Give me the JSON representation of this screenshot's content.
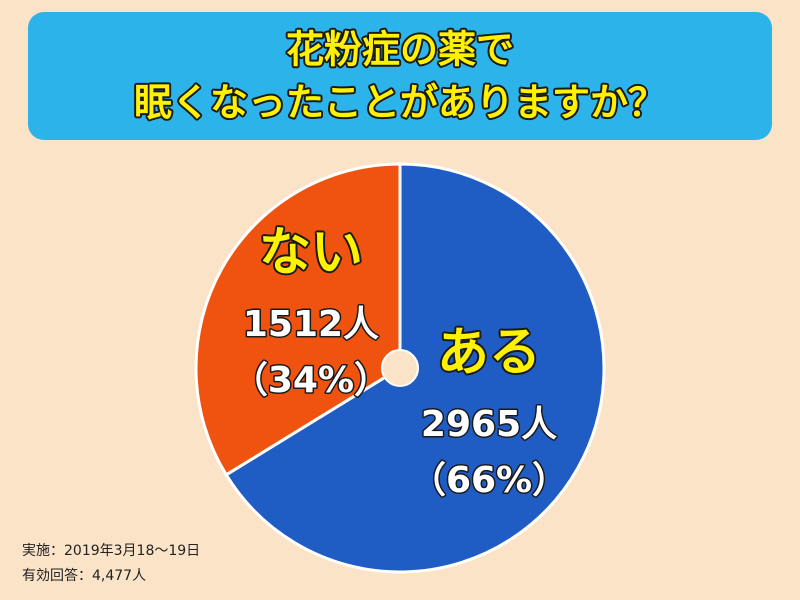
{
  "chart_data": {
    "type": "pie",
    "title_lines": [
      "花粉症の薬で",
      "眠くなったことがありますか？"
    ],
    "categories": [
      "ある",
      "ない"
    ],
    "values": [
      2965,
      1512
    ],
    "value_labels": [
      "2965人",
      "1512人"
    ],
    "percents": [
      66,
      34
    ],
    "percent_labels": [
      "（66%）",
      "（34%）"
    ],
    "colors": [
      "#1f5dc4",
      "#f0520f"
    ],
    "notes": [
      "実施：2019年3月18～19日",
      "有効回答：4,477人"
    ]
  }
}
